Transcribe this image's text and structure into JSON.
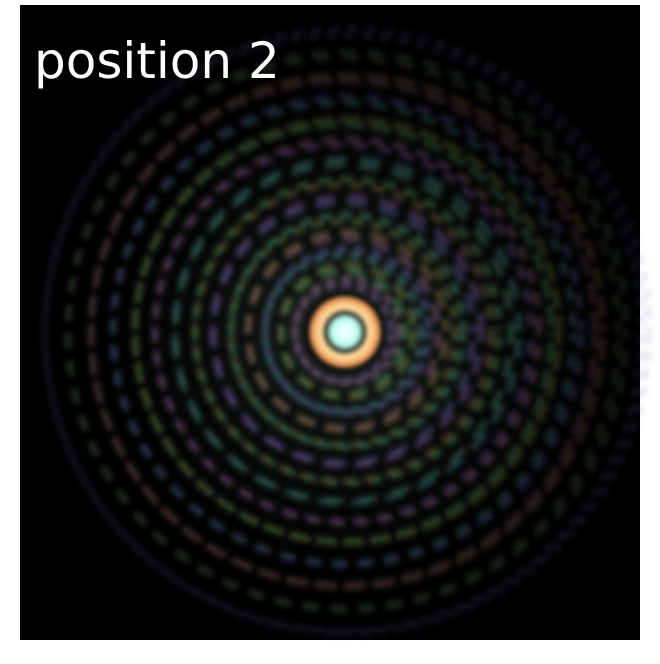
{
  "label": "position 2"
}
